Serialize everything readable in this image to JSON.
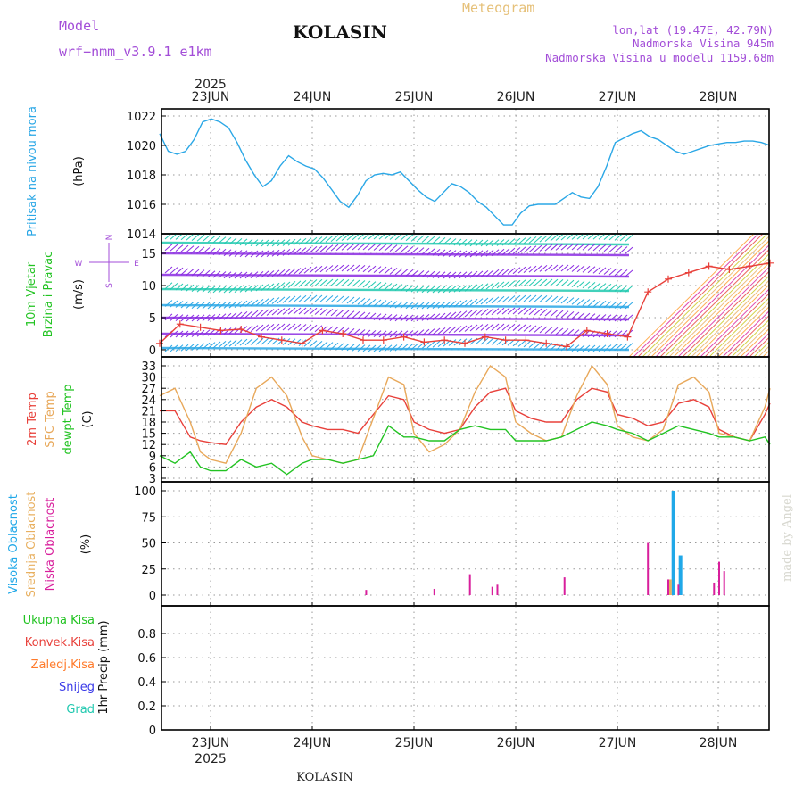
{
  "header": {
    "model_label": "Model",
    "model_name": "wrf−nmm_v3.9.1  e1km",
    "station": "KOLASIN",
    "product": "Meteogram",
    "lonlat": "lon,lat (19.47E, 42.79N)",
    "elevation": "Nadmorska Visina 945m",
    "model_elevation": "Nadmorska Visina u modelu 1159.68m",
    "credit": "made by Angel",
    "footer_station": "KOLASIN"
  },
  "time_axis": {
    "year": "2025",
    "day_labels": [
      "23JUN",
      "24JUN",
      "25JUN",
      "26JUN",
      "27JUN",
      "28JUN"
    ]
  },
  "colors": {
    "pressure": "#2aa7e6",
    "wind_speed": "#e8403a",
    "temp_2m": "#e8403a",
    "temp_sfc": "#e8a85a",
    "dewpoint": "#22c322",
    "cloud_high": "#20a8e8",
    "cloud_mid": "#e8b060",
    "cloud_low": "#d81f9c",
    "precip_total": "#22c322",
    "precip_conv": "#e8403a",
    "precip_frz": "#ff7a2a",
    "snow": "#3a3ae8",
    "hail": "#22c9b0",
    "purple_text": "#a34ed8",
    "gold_text": "#e6c17a"
  },
  "chart_data": [
    {
      "type": "line",
      "panel": "pressure",
      "ylabel_1": "Pritisak na nivou mora",
      "ylabel_2": "(hPa)",
      "ylim": [
        1014,
        1022
      ],
      "yticks": [
        "1014",
        "1016",
        "1018",
        "1020",
        "1022"
      ],
      "grid": true,
      "series": [
        {
          "x": [
            0,
            1,
            2,
            3,
            4,
            5,
            6,
            7,
            8,
            9,
            10,
            11,
            12,
            13,
            14,
            15,
            16,
            17,
            18,
            19,
            20,
            21,
            22,
            23,
            24,
            25,
            26,
            27,
            28,
            29,
            30,
            31,
            32,
            33,
            34,
            35,
            36,
            37,
            38,
            39,
            40,
            41,
            42,
            43,
            44,
            45,
            46,
            47,
            48,
            49,
            50,
            51,
            52,
            53,
            54,
            55,
            56,
            57,
            58,
            59,
            60,
            61,
            62,
            63,
            64,
            65,
            66,
            67,
            68,
            69,
            70,
            71
          ],
          "y": [
            1020.8,
            1019.6,
            1019.4,
            1019.6,
            1020.4,
            1021.6,
            1021.8,
            1021.6,
            1021.2,
            1020.2,
            1019.0,
            1018.0,
            1017.2,
            1017.6,
            1018.6,
            1019.3,
            1018.9,
            1018.6,
            1018.4,
            1017.8,
            1017.0,
            1016.2,
            1015.8,
            1016.6,
            1017.6,
            1018.0,
            1018.1,
            1018.0,
            1018.2,
            1017.6,
            1017.0,
            1016.5,
            1016.2,
            1016.8,
            1017.4,
            1017.2,
            1016.8,
            1016.2,
            1015.8,
            1015.2,
            1014.6,
            1014.6,
            1015.4,
            1015.9,
            1016.0,
            1016.0,
            1016.0,
            1016.4,
            1016.8,
            1016.5,
            1016.4,
            1017.2,
            1018.6,
            1020.2,
            1020.5,
            1020.8,
            1021.0,
            1020.6,
            1020.4,
            1020.0,
            1019.6,
            1019.4,
            1019.6,
            1019.8,
            1020.0,
            1020.1,
            1020.2,
            1020.2,
            1020.3,
            1020.3,
            1020.2,
            1020.0
          ],
          "x_range": [
            -0.5,
            5.5
          ]
        }
      ]
    },
    {
      "type": "line",
      "panel": "wind",
      "ylabel_1": "10m Vjetar",
      "ylabel_2": "Brzina i Pravac",
      "ylabel_3": "(m/s)",
      "compass_n": "N",
      "compass_s": "S",
      "compass_w": "W",
      "compass_e": "E",
      "ylim": [
        0,
        15
      ],
      "yticks": [
        "0",
        "5",
        "10",
        "15"
      ],
      "grid": true,
      "series": [
        {
          "name": "10m wind speed",
          "x": [
            -0.5,
            -0.3,
            -0.1,
            0.1,
            0.3,
            0.5,
            0.7,
            0.9,
            1.1,
            1.3,
            1.5,
            1.7,
            1.9,
            2.1,
            2.3,
            2.5,
            2.7,
            2.9,
            3.1,
            3.3,
            3.5,
            3.7,
            3.9,
            4.1,
            4.3,
            4.5,
            4.7,
            4.9,
            5.1,
            5.3,
            5.5
          ],
          "y": [
            1.0,
            4.0,
            3.5,
            3.0,
            3.2,
            2.0,
            1.5,
            1.0,
            3.0,
            2.5,
            1.5,
            1.5,
            2.0,
            1.2,
            1.5,
            1.0,
            2.0,
            1.5,
            1.5,
            1.0,
            0.5,
            3.0,
            2.5,
            2.0,
            9.0,
            11.0,
            12.0,
            13.0,
            12.5,
            13.0,
            13.5
          ]
        }
      ]
    },
    {
      "type": "line",
      "panel": "temperature",
      "ylabel_1": "2m Temp",
      "ylabel_2": "SFC Temp",
      "ylabel_3": "dewpt Temp",
      "ylabel_4": "(C)",
      "ylim": [
        3,
        33
      ],
      "yticks": [
        "3",
        "6",
        "9",
        "12",
        "15",
        "18",
        "21",
        "24",
        "27",
        "30",
        "33"
      ],
      "grid": true,
      "series": [
        {
          "name": "2m Temp",
          "x": [
            -0.5,
            -0.35,
            -0.2,
            -0.1,
            0.0,
            0.15,
            0.3,
            0.45,
            0.6,
            0.75,
            0.9,
            1.0,
            1.15,
            1.3,
            1.45,
            1.6,
            1.75,
            1.9,
            2.0,
            2.15,
            2.3,
            2.45,
            2.6,
            2.75,
            2.9,
            3.0,
            3.15,
            3.3,
            3.45,
            3.6,
            3.75,
            3.9,
            4.0,
            4.15,
            4.3,
            4.45,
            4.6,
            4.75,
            4.9,
            5.0,
            5.15,
            5.3,
            5.45,
            5.5
          ],
          "y": [
            21,
            21,
            14,
            13,
            12.5,
            12,
            18,
            22,
            24,
            22,
            18,
            17,
            16,
            16,
            15,
            20,
            25,
            24,
            18,
            16,
            15,
            16,
            22,
            26,
            27,
            21,
            19,
            18,
            18,
            24,
            27,
            26,
            20,
            19,
            17,
            18,
            23,
            24,
            22,
            16,
            14,
            13,
            20,
            23
          ]
        },
        {
          "name": "SFC Temp",
          "x": [
            -0.5,
            -0.35,
            -0.2,
            -0.1,
            0.0,
            0.15,
            0.3,
            0.45,
            0.6,
            0.75,
            0.9,
            1.0,
            1.15,
            1.3,
            1.45,
            1.6,
            1.75,
            1.9,
            2.0,
            2.15,
            2.3,
            2.45,
            2.6,
            2.75,
            2.9,
            3.0,
            3.15,
            3.3,
            3.45,
            3.6,
            3.75,
            3.9,
            4.0,
            4.15,
            4.3,
            4.45,
            4.6,
            4.75,
            4.9,
            5.0,
            5.15,
            5.3,
            5.45,
            5.5
          ],
          "y": [
            25,
            27,
            18,
            10,
            8,
            7,
            15,
            27,
            30,
            25,
            14,
            9,
            8,
            7,
            8,
            19,
            30,
            28,
            15,
            10,
            12,
            16,
            26,
            33,
            30,
            18,
            15,
            13,
            14,
            25,
            33,
            28,
            17,
            14,
            13,
            16,
            28,
            30,
            26,
            15,
            14,
            13,
            22,
            27
          ]
        },
        {
          "name": "dewpt Temp",
          "x": [
            -0.5,
            -0.35,
            -0.2,
            -0.1,
            0.0,
            0.15,
            0.3,
            0.45,
            0.6,
            0.75,
            0.9,
            1.0,
            1.15,
            1.3,
            1.45,
            1.6,
            1.75,
            1.9,
            2.0,
            2.15,
            2.3,
            2.45,
            2.6,
            2.75,
            2.9,
            3.0,
            3.15,
            3.3,
            3.45,
            3.6,
            3.75,
            3.9,
            4.0,
            4.15,
            4.3,
            4.45,
            4.6,
            4.75,
            4.9,
            5.0,
            5.15,
            5.3,
            5.45,
            5.5
          ],
          "y": [
            9,
            7,
            10,
            6,
            5,
            5,
            8,
            6,
            7,
            4,
            7,
            8,
            8,
            7,
            8,
            9,
            17,
            14,
            14,
            13,
            13,
            16,
            17,
            16,
            16,
            13,
            13,
            13,
            14,
            16,
            18,
            17,
            16,
            15,
            13,
            15,
            17,
            16,
            15,
            14,
            14,
            13,
            14,
            12
          ]
        }
      ]
    },
    {
      "type": "bar",
      "panel": "clouds",
      "ylabel_1": "Visoka Oblacnost",
      "ylabel_2": "Srednja Oblacnost",
      "ylabel_3": "Niska Oblacnost",
      "ylabel_4": "(%)",
      "ylim": [
        0,
        100
      ],
      "yticks": [
        "0",
        "25",
        "50",
        "75",
        "100"
      ],
      "grid": true,
      "series": [
        {
          "name": "Visoka Oblacnost",
          "x": [
            4.55,
            4.62
          ],
          "values": [
            100,
            38
          ]
        },
        {
          "name": "Srednja Oblacnost",
          "x": [
            4.52
          ],
          "values": [
            15
          ]
        },
        {
          "name": "Niska Oblacnost",
          "x": [
            1.53,
            2.2,
            2.55,
            2.77,
            2.82,
            3.48,
            4.3,
            4.5,
            4.6,
            4.95,
            5.0,
            5.05
          ],
          "values": [
            5,
            6,
            20,
            8,
            10,
            17,
            50,
            15,
            10,
            12,
            32,
            23
          ]
        }
      ]
    },
    {
      "type": "bar",
      "panel": "precipitation",
      "ylabel_1": "Ukupna Kisa",
      "ylabel_2": "Konvek.Kisa",
      "ylabel_3": "Zaledj.Kisa",
      "ylabel_4": "Snijeg",
      "ylabel_5": "Grad",
      "ylabel_6": "1hr Precip (mm)",
      "ylim": [
        0,
        1.0
      ],
      "yticks": [
        "0",
        "0.2",
        "0.4",
        "0.6",
        "0.8"
      ],
      "grid": true,
      "series": [
        {
          "name": "Ukupna Kisa",
          "x": [],
          "values": []
        }
      ]
    }
  ]
}
